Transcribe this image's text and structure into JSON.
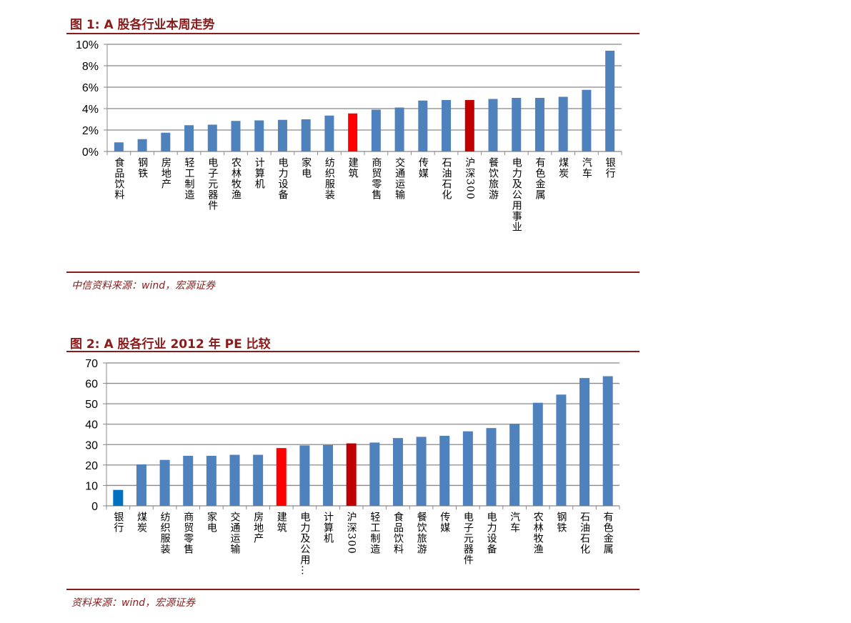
{
  "colors": {
    "bar": "#4f81bd",
    "highlight": "#ff0000",
    "index": "#c00000",
    "bank2": "#0070c0",
    "accent": "#8b1a1a"
  },
  "chart_data": [
    {
      "type": "bar",
      "title": "图 1:  A 股各行业本周走势",
      "source": "中信资料来源：wind，宏源证券",
      "ylim": [
        0,
        10
      ],
      "yticks": [
        "0%",
        "2%",
        "4%",
        "6%",
        "8%",
        "10%"
      ],
      "ytick_values": [
        0,
        2,
        4,
        6,
        8,
        10
      ],
      "categories": [
        "食品饮料",
        "钢铁",
        "房地产",
        "轻工制造",
        "电子元器件",
        "农林牧渔",
        "计算机",
        "电力设备",
        "家电",
        "纺织服装",
        "建筑",
        "商贸零售",
        "交通运输",
        "传媒",
        "石油石化",
        "沪深300",
        "餐饮旅游",
        "电力及公用事业",
        "有色金属",
        "煤炭",
        "汽车",
        "银行"
      ],
      "values": [
        0.85,
        1.15,
        1.75,
        2.45,
        2.5,
        2.85,
        2.9,
        2.95,
        3.0,
        3.35,
        3.55,
        3.9,
        4.1,
        4.75,
        4.8,
        4.8,
        4.9,
        5.0,
        5.0,
        5.1,
        5.75,
        9.4
      ],
      "highlights": {
        "建筑": "highlight",
        "沪深300": "index"
      },
      "unit": "%"
    },
    {
      "type": "bar",
      "title": "图 2:  A 股各行业 2012 年 PE 比较",
      "source": "资料来源：wind，宏源证券",
      "ylim": [
        0,
        70
      ],
      "yticks": [
        "0",
        "10",
        "20",
        "30",
        "40",
        "50",
        "60",
        "70"
      ],
      "ytick_values": [
        0,
        10,
        20,
        30,
        40,
        50,
        60,
        70
      ],
      "categories": [
        "银行",
        "煤炭",
        "纺织服装",
        "商贸零售",
        "家电",
        "交通运输",
        "房地产",
        "建筑",
        "电力及公用…",
        "计算机",
        "沪深300",
        "轻工制造",
        "食品饮料",
        "餐饮旅游",
        "传媒",
        "电子元器件",
        "电力设备",
        "汽车",
        "农林牧渔",
        "钢铁",
        "石油石化",
        "有色金属"
      ],
      "values": [
        7.8,
        20.3,
        22.5,
        24.5,
        24.5,
        25.0,
        25.0,
        28.3,
        29.6,
        29.8,
        30.6,
        31.0,
        33.2,
        33.8,
        34.3,
        36.5,
        38.1,
        40.2,
        50.5,
        54.5,
        62.6,
        63.5
      ],
      "highlights": {
        "银行": "bank2",
        "建筑": "highlight",
        "沪深300": "index"
      },
      "unit": ""
    }
  ]
}
